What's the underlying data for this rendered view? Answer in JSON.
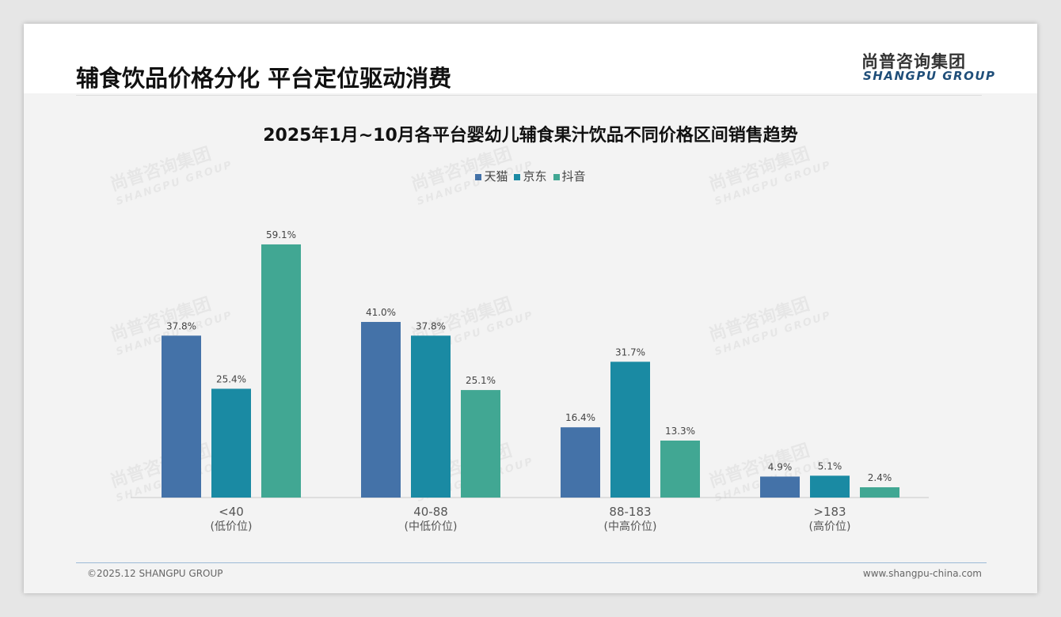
{
  "header": {
    "title": "辅食饮品价格分化 平台定位驱动消费",
    "logo_cn": "尚普咨询集团",
    "logo_en": "SHANGPU GROUP"
  },
  "footer": {
    "copyright": "©2025.12 SHANGPU GROUP",
    "website": "www.shangpu-china.com"
  },
  "colors": {
    "天猫": "#4472a8",
    "京东": "#1a8aa3",
    "抖音": "#41a793"
  },
  "chart_data": {
    "type": "bar",
    "title": "2025年1月~10月各平台婴幼儿辅食果汁饮品不同价格区间销售趋势",
    "categories": [
      "<40",
      "40-88",
      "88-183",
      ">183"
    ],
    "category_sublabels": [
      "(低价位)",
      "(中低价位)",
      "(中高价位)",
      "(高价位)"
    ],
    "series": [
      {
        "name": "天猫",
        "values": [
          37.8,
          41.0,
          16.4,
          4.9
        ]
      },
      {
        "name": "京东",
        "values": [
          25.4,
          37.8,
          31.7,
          5.1
        ]
      },
      {
        "name": "抖音",
        "values": [
          59.1,
          25.1,
          13.3,
          2.4
        ]
      }
    ],
    "unit": "%",
    "legend": "top-center",
    "grid": false
  }
}
